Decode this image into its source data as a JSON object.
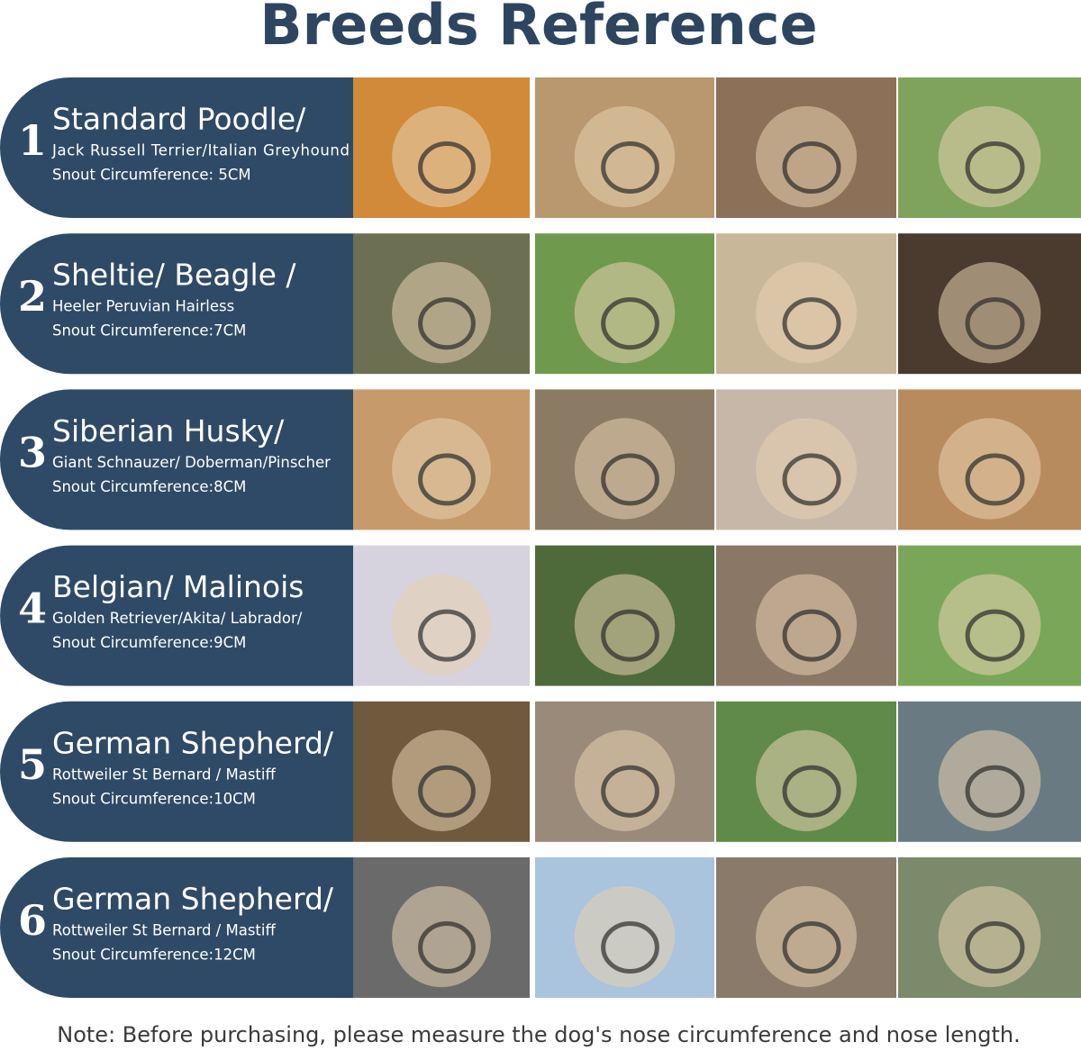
{
  "header": {
    "title": "Breeds Reference"
  },
  "rows": [
    {
      "number": "1",
      "name": "Standard Poodle/",
      "breeds": "Jack Russell Terrier/Italian Greyhound",
      "snout": "Snout Circumference: 5CM"
    },
    {
      "number": "2",
      "name": "Sheltie/ Beagle /",
      "breeds": "Heeler Peruvian Hairless",
      "snout": "Snout Circumference:7CM"
    },
    {
      "number": "3",
      "name": "Siberian Husky/",
      "breeds": "Giant Schnauzer/ Doberman/Pinscher",
      "snout": "Snout Circumference:8CM"
    },
    {
      "number": "4",
      "name": "Belgian/ Malinois",
      "breeds": "Golden Retriever/Akita/ Labrador/",
      "snout": "Snout Circumference:9CM"
    },
    {
      "number": "5",
      "name": "German Shepherd/",
      "breeds": "Rottweiler St Bernard / Mastiff",
      "snout": "Snout Circumference:10CM"
    },
    {
      "number": "6",
      "name": "German Shepherd/",
      "breeds": "Rottweiler St Bernard / Mastiff",
      "snout": "Snout Circumference:12CM"
    }
  ],
  "note": "Note: Before purchasing, please measure the dog's nose circumference and nose length."
}
